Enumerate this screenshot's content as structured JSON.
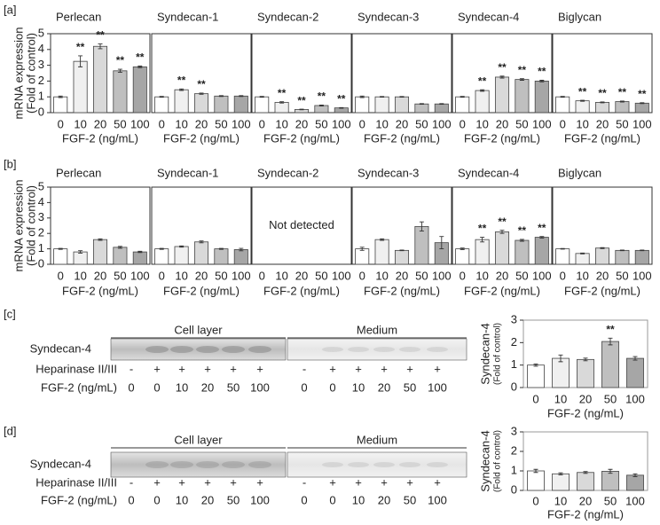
{
  "chart_data": [
    {
      "type": "bar",
      "panel": "[a]",
      "title": "Perlecan",
      "ylabel": [
        "mRNA expression",
        "(Fold of control)"
      ],
      "xlabel": "FGF-2 (ng/mL)",
      "categories": [
        "0",
        "10",
        "20",
        "50",
        "100"
      ],
      "values": [
        1,
        3.25,
        4.2,
        2.65,
        2.9
      ],
      "errors": [
        0.05,
        0.35,
        0.15,
        0.1,
        0.05
      ],
      "significance": [
        null,
        "**",
        "**",
        "**",
        "**"
      ],
      "ylim": [
        0,
        5
      ],
      "yticks": [
        0,
        1,
        2,
        3,
        4,
        5
      ],
      "colors": [
        "#ffffff",
        "#f0f0f0",
        "#d9d9d9",
        "#bfbfbf",
        "#a6a6a6"
      ]
    },
    {
      "type": "bar",
      "title": "Syndecan-1",
      "xlabel": "FGF-2 (ng/mL)",
      "categories": [
        "0",
        "10",
        "20",
        "50",
        "100"
      ],
      "values": [
        1,
        1.45,
        1.2,
        1.05,
        1.05
      ],
      "errors": [
        0.03,
        0.05,
        0.04,
        0.03,
        0.03
      ],
      "significance": [
        null,
        "**",
        "**",
        null,
        null
      ],
      "ylim": [
        0,
        5
      ],
      "colors": [
        "#ffffff",
        "#f0f0f0",
        "#d9d9d9",
        "#bfbfbf",
        "#a6a6a6"
      ]
    },
    {
      "type": "bar",
      "title": "Syndecan-2",
      "xlabel": "FGF-2 (ng/mL)",
      "categories": [
        "0",
        "10",
        "20",
        "50",
        "100"
      ],
      "values": [
        1,
        0.65,
        0.2,
        0.45,
        0.3
      ],
      "errors": [
        0.03,
        0.04,
        0.02,
        0.03,
        0.02
      ],
      "significance": [
        null,
        "**",
        "**",
        "**",
        "**"
      ],
      "ylim": [
        0,
        5
      ],
      "colors": [
        "#ffffff",
        "#f0f0f0",
        "#d9d9d9",
        "#bfbfbf",
        "#a6a6a6"
      ]
    },
    {
      "type": "bar",
      "title": "Syndecan-3",
      "xlabel": "FGF-2 (ng/mL)",
      "categories": [
        "0",
        "10",
        "20",
        "50",
        "100"
      ],
      "values": [
        1,
        1,
        1,
        0.55,
        0.55
      ],
      "errors": [
        0.05,
        0.02,
        0.02,
        0.02,
        0.02
      ],
      "significance": [
        null,
        null,
        null,
        null,
        null
      ],
      "ylim": [
        0,
        5
      ],
      "colors": [
        "#ffffff",
        "#f0f0f0",
        "#d9d9d9",
        "#bfbfbf",
        "#a6a6a6"
      ]
    },
    {
      "type": "bar",
      "title": "Syndecan-4",
      "xlabel": "FGF-2 (ng/mL)",
      "categories": [
        "0",
        "10",
        "20",
        "50",
        "100"
      ],
      "values": [
        1,
        1.4,
        2.25,
        2.1,
        2.0
      ],
      "errors": [
        0.03,
        0.05,
        0.06,
        0.05,
        0.05
      ],
      "significance": [
        null,
        "**",
        "**",
        "**",
        "**"
      ],
      "ylim": [
        0,
        5
      ],
      "colors": [
        "#ffffff",
        "#f0f0f0",
        "#d9d9d9",
        "#bfbfbf",
        "#a6a6a6"
      ]
    },
    {
      "type": "bar",
      "title": "Biglycan",
      "xlabel": "FGF-2 (ng/mL)",
      "categories": [
        "0",
        "10",
        "20",
        "50",
        "100"
      ],
      "values": [
        1,
        0.75,
        0.65,
        0.7,
        0.6
      ],
      "errors": [
        0.03,
        0.03,
        0.03,
        0.03,
        0.03
      ],
      "significance": [
        null,
        "**",
        "**",
        "**",
        "**"
      ],
      "ylim": [
        0,
        5
      ],
      "colors": [
        "#ffffff",
        "#f0f0f0",
        "#d9d9d9",
        "#bfbfbf",
        "#a6a6a6"
      ]
    },
    {
      "type": "bar",
      "panel": "[b]",
      "title": "Perlecan",
      "ylabel": [
        "mRNA expression",
        "(Fold of control)"
      ],
      "xlabel": "FGF-2 (ng/mL)",
      "categories": [
        "0",
        "10",
        "20",
        "50",
        "100"
      ],
      "values": [
        1,
        0.8,
        1.6,
        1.1,
        0.8
      ],
      "errors": [
        0.03,
        0.08,
        0.05,
        0.06,
        0.04
      ],
      "significance": [
        null,
        null,
        null,
        null,
        null
      ],
      "ylim": [
        0,
        5
      ],
      "yticks": [
        0,
        1,
        2,
        3,
        4,
        5
      ],
      "colors": [
        "#ffffff",
        "#f0f0f0",
        "#d9d9d9",
        "#bfbfbf",
        "#a6a6a6"
      ]
    },
    {
      "type": "bar",
      "title": "Syndecan-1",
      "xlabel": "FGF-2 (ng/mL)",
      "categories": [
        "0",
        "10",
        "20",
        "50",
        "100"
      ],
      "values": [
        1,
        1.15,
        1.45,
        1.0,
        0.95
      ],
      "errors": [
        0.03,
        0.04,
        0.06,
        0.03,
        0.08
      ],
      "significance": [
        null,
        null,
        null,
        null,
        null
      ],
      "ylim": [
        0,
        5
      ],
      "colors": [
        "#ffffff",
        "#f0f0f0",
        "#d9d9d9",
        "#bfbfbf",
        "#a6a6a6"
      ]
    },
    {
      "type": "bar",
      "title": "Syndecan-2",
      "xlabel": "FGF-2 (ng/mL)",
      "categories": [
        "0",
        "10",
        "20",
        "50",
        "100"
      ],
      "annotation": "Not detected",
      "ylim": [
        0,
        5
      ]
    },
    {
      "type": "bar",
      "title": "Syndecan-3",
      "xlabel": "FGF-2 (ng/mL)",
      "categories": [
        "0",
        "10",
        "20",
        "50",
        "100"
      ],
      "values": [
        1,
        1.6,
        0.9,
        2.45,
        1.4
      ],
      "errors": [
        0.1,
        0.05,
        0.02,
        0.3,
        0.4
      ],
      "significance": [
        null,
        null,
        null,
        null,
        null
      ],
      "ylim": [
        0,
        5
      ],
      "colors": [
        "#ffffff",
        "#f0f0f0",
        "#d9d9d9",
        "#bfbfbf",
        "#a6a6a6"
      ]
    },
    {
      "type": "bar",
      "title": "Syndecan-4",
      "xlabel": "FGF-2 (ng/mL)",
      "categories": [
        "0",
        "10",
        "20",
        "50",
        "100"
      ],
      "values": [
        1,
        1.6,
        2.1,
        1.55,
        1.75
      ],
      "errors": [
        0.05,
        0.15,
        0.1,
        0.06,
        0.05
      ],
      "significance": [
        null,
        "**",
        "**",
        "**",
        "**"
      ],
      "ylim": [
        0,
        5
      ],
      "colors": [
        "#ffffff",
        "#f0f0f0",
        "#d9d9d9",
        "#bfbfbf",
        "#a6a6a6"
      ]
    },
    {
      "type": "bar",
      "title": "Biglycan",
      "xlabel": "FGF-2 (ng/mL)",
      "categories": [
        "0",
        "10",
        "20",
        "50",
        "100"
      ],
      "values": [
        1,
        0.7,
        1.05,
        0.9,
        0.9
      ],
      "errors": [
        0.02,
        0.03,
        0.03,
        0.02,
        0.02
      ],
      "significance": [
        null,
        null,
        null,
        null,
        null
      ],
      "ylim": [
        0,
        5
      ],
      "colors": [
        "#ffffff",
        "#f0f0f0",
        "#d9d9d9",
        "#bfbfbf",
        "#a6a6a6"
      ]
    },
    {
      "type": "bar",
      "ylabel": [
        "Syndecan-4",
        "(Fold of control)"
      ],
      "xlabel": "FGF-2 (ng/mL)",
      "categories": [
        "0",
        "10",
        "20",
        "50",
        "100"
      ],
      "values": [
        1,
        1.3,
        1.25,
        2.05,
        1.3
      ],
      "errors": [
        0.05,
        0.15,
        0.06,
        0.15,
        0.08
      ],
      "significance": [
        null,
        null,
        null,
        "**",
        null
      ],
      "ylim": [
        0,
        3
      ],
      "yticks": [
        0,
        1,
        2,
        3
      ],
      "colors": [
        "#ffffff",
        "#f0f0f0",
        "#d9d9d9",
        "#bfbfbf",
        "#a6a6a6"
      ]
    },
    {
      "type": "bar",
      "ylabel": [
        "Syndecan-4",
        "(Fold of control)"
      ],
      "xlabel": "FGF-2 (ng/mL)",
      "categories": [
        "0",
        "10",
        "20",
        "50",
        "100"
      ],
      "values": [
        1,
        0.85,
        0.92,
        0.98,
        0.78
      ],
      "errors": [
        0.08,
        0.05,
        0.05,
        0.1,
        0.07
      ],
      "significance": [
        null,
        null,
        null,
        null,
        null
      ],
      "ylim": [
        0,
        3
      ],
      "yticks": [
        0,
        1,
        2,
        3
      ],
      "colors": [
        "#ffffff",
        "#f0f0f0",
        "#d9d9d9",
        "#bfbfbf",
        "#a6a6a6"
      ]
    }
  ],
  "blots": [
    {
      "panel": "[c]",
      "groups": [
        "Cell layer",
        "Medium"
      ],
      "band": "Syndecan-4",
      "rows": [
        {
          "label": "Heparinase II/III",
          "lanes": [
            "-",
            "+",
            "+",
            "+",
            "+",
            "+",
            "-",
            "+",
            "+",
            "+",
            "+",
            "+"
          ]
        },
        {
          "label": "FGF-2 (ng/mL)",
          "lanes": [
            "0",
            "0",
            "10",
            "20",
            "50",
            "100",
            "0",
            "0",
            "10",
            "20",
            "50",
            "100"
          ]
        }
      ]
    },
    {
      "panel": "[d]",
      "groups": [
        "Cell layer",
        "Medium"
      ],
      "band": "Syndecan-4",
      "rows": [
        {
          "label": "Heparinase II/III",
          "lanes": [
            "-",
            "+",
            "+",
            "+",
            "+",
            "+",
            "-",
            "+",
            "+",
            "+",
            "+",
            "+"
          ]
        },
        {
          "label": "FGF-2 (ng/mL)",
          "lanes": [
            "0",
            "0",
            "10",
            "20",
            "50",
            "100",
            "0",
            "0",
            "10",
            "20",
            "50",
            "100"
          ]
        }
      ]
    }
  ]
}
